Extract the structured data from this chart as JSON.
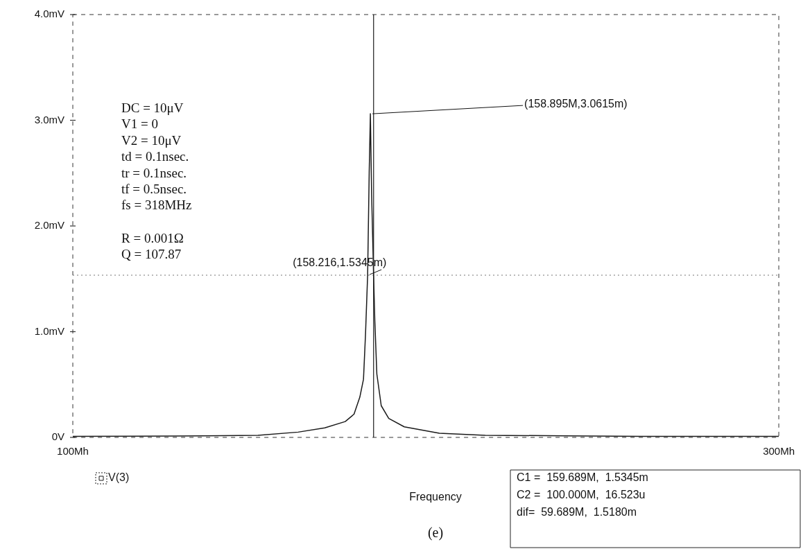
{
  "chart_data": {
    "type": "line",
    "xlabel": "Frequency",
    "x": [
      100,
      110.5,
      122.6,
      133.4,
      142,
      148,
      152.8,
      154.9,
      156.3,
      157.2,
      157.7,
      158.216,
      158.6,
      158.895,
      159.2,
      159.689,
      160,
      160.5,
      161.6,
      163.5,
      167.5,
      176.9,
      190,
      215,
      242,
      300
    ],
    "series": [
      {
        "name": "V(3)",
        "color": "#1a1a1a",
        "values": [
          0.01,
          0.012,
          0.015,
          0.02,
          0.05,
          0.09,
          0.15,
          0.22,
          0.38,
          0.55,
          0.98,
          1.5345,
          2.5,
          3.0615,
          2.3,
          1.5345,
          1.1,
          0.6,
          0.3,
          0.18,
          0.1,
          0.04,
          0.02,
          0.015,
          0.01,
          0.01
        ]
      }
    ],
    "log": "x",
    "xlim": [
      100,
      300
    ],
    "xticks": [
      {
        "value": 100,
        "label": "100Mh"
      },
      {
        "value": 300,
        "label": "300Mh"
      }
    ],
    "ylim": [
      0,
      4
    ],
    "yticks": [
      {
        "value": 0,
        "label": "0V"
      },
      {
        "value": 1,
        "label": "1.0mV"
      },
      {
        "value": 2,
        "label": "2.0mV"
      },
      {
        "value": 3,
        "label": "3.0mV"
      },
      {
        "value": 4,
        "label": "4.0mV"
      }
    ],
    "grid": false,
    "legend": "bottom left",
    "marker": "none",
    "line_style": "solid",
    "ref_lines": [
      {
        "axis": "x",
        "value": 159.689,
        "color": "#1a1a1a",
        "line_style": "solid"
      },
      {
        "axis": "y",
        "value": 1.5345,
        "color": "#777777",
        "line_style": "dotted"
      }
    ],
    "annotations": [
      {
        "text": "(158.895M,3.0615m)",
        "x": 158.895,
        "y": 3.0615
      },
      {
        "text": "(158.216,1.5345m)",
        "x": 158.216,
        "y": 1.5345
      },
      "DC = 10μV",
      "V1 = 0",
      "V2 = 10μV",
      "td = 0.1nsec.",
      "tr = 0.1nsec.",
      "tf = 0.5nsec.",
      "fs = 318MHz",
      "R = 0.001Ω",
      "Q = 107.87",
      "C1 =  159.689M,  1.5345m",
      "C2 =  100.000M,  16.523u",
      "dif=  59.689M,  1.5180m",
      "(e)"
    ]
  }
}
